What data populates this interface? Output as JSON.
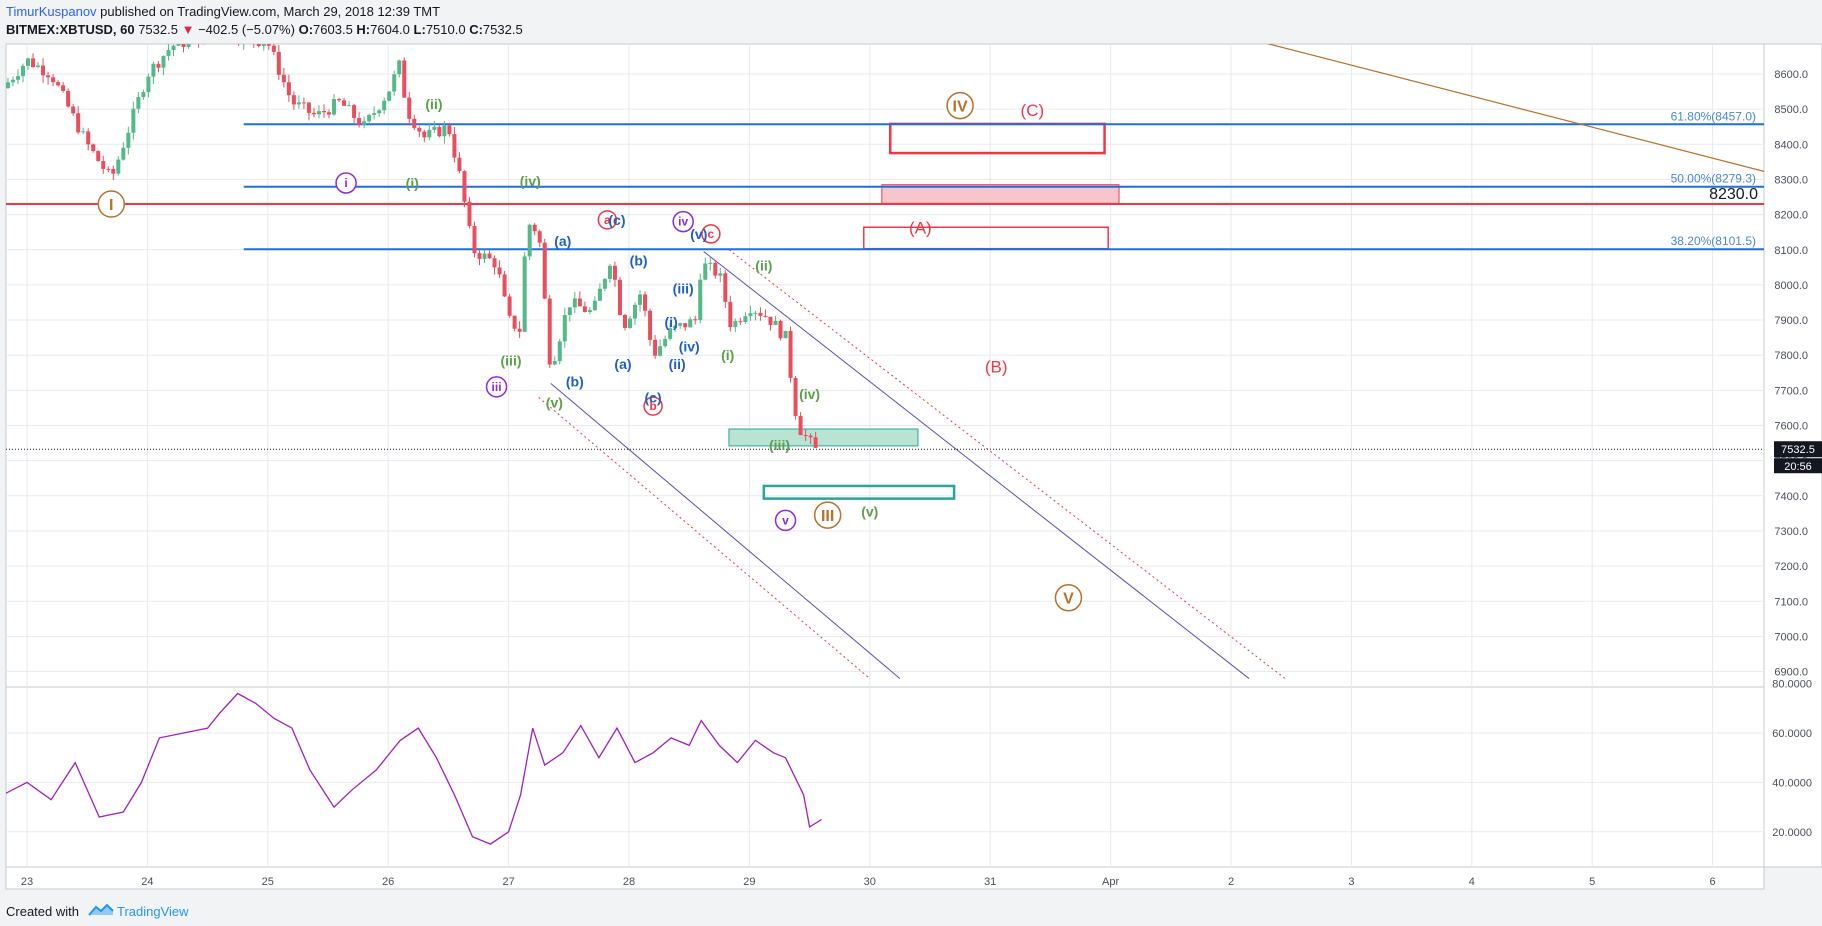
{
  "header": {
    "author": "TimurKuspanov",
    "published_text": " published on TradingView.com, March 29, 2018 12:39 TMT",
    "symbol_label": "BITMEX:XBTUSD, 60",
    "last_price": "7532.5",
    "change_arrow": "▼",
    "change": "−402.5 (−5.07%)",
    "o_label": "O:",
    "o_value": "7603.5",
    "h_label": "H:",
    "h_value": "7604.0",
    "l_label": "L:",
    "l_value": "7510.0",
    "c_label": "C:",
    "c_value": "7532.5"
  },
  "footer": {
    "created_with": "Created with",
    "brand": "TradingView"
  },
  "colors": {
    "up": "#53b987",
    "down": "#eb4d5c",
    "fib": "#1e6fe0",
    "resistance": "#f23645",
    "rsi": "#a020c0",
    "trend": "#b8702a",
    "channel": "#5a4fb5",
    "grid": "#e6eaef"
  },
  "chart_data": {
    "type": "candlestick",
    "symbol": "BITMEX:XBTUSD",
    "timeframe": "60",
    "x_tick_labels": [
      "23",
      "24",
      "25",
      "26",
      "27",
      "28",
      "29",
      "30",
      "31",
      "Apr",
      "2",
      "3",
      "4",
      "5",
      "6"
    ],
    "y_tick_labels": [
      "8600.0",
      "8500.0",
      "8400.0",
      "8300.0",
      "8200.0",
      "8100.0",
      "8000.0",
      "7900.0",
      "7800.0",
      "7700.0",
      "7600.0",
      "7500.0",
      "7400.0",
      "7300.0",
      "7200.0",
      "7100.0",
      "7000.0",
      "6900.0"
    ],
    "ylim": [
      6880,
      8700
    ],
    "price_path": [
      [
        22.8,
        8560
      ],
      [
        23.0,
        8640
      ],
      [
        23.2,
        8600
      ],
      [
        23.5,
        8400
      ],
      [
        23.7,
        8300
      ],
      [
        23.9,
        8500
      ],
      [
        24.0,
        8600
      ],
      [
        24.2,
        8680
      ],
      [
        24.6,
        8720
      ],
      [
        25.0,
        8690
      ],
      [
        25.2,
        8520
      ],
      [
        25.4,
        8480
      ],
      [
        25.6,
        8520
      ],
      [
        25.8,
        8450
      ],
      [
        26.0,
        8550
      ],
      [
        26.1,
        8630
      ],
      [
        26.15,
        8500
      ],
      [
        26.3,
        8420
      ],
      [
        26.5,
        8450
      ],
      [
        26.6,
        8300
      ],
      [
        26.7,
        8100
      ],
      [
        26.9,
        8060
      ],
      [
        27.0,
        7900
      ],
      [
        27.1,
        7870
      ],
      [
        27.15,
        8180
      ],
      [
        27.25,
        8150
      ],
      [
        27.35,
        7760
      ],
      [
        27.5,
        7950
      ],
      [
        27.7,
        7920
      ],
      [
        27.85,
        8080
      ],
      [
        27.95,
        7880
      ],
      [
        28.1,
        7980
      ],
      [
        28.2,
        7800
      ],
      [
        28.35,
        7870
      ],
      [
        28.55,
        7900
      ],
      [
        28.6,
        8060
      ],
      [
        28.75,
        8030
      ],
      [
        28.85,
        7880
      ],
      [
        29.0,
        7940
      ],
      [
        29.15,
        7910
      ],
      [
        29.3,
        7850
      ],
      [
        29.4,
        7600
      ],
      [
        29.55,
        7530
      ]
    ],
    "current_price_label": "7532.5",
    "countdown_label": "20:56",
    "level_label_8230": "8230.0",
    "fib_levels": [
      {
        "label": "61.80%(8457.0)",
        "price": 8457.0
      },
      {
        "label": "50.00%(8279.3)",
        "price": 8279.3
      },
      {
        "label": "38.20%(8101.5)",
        "price": 8101.5
      }
    ],
    "horizontal_level": 8230.0,
    "wave_labels_circled": [
      {
        "text": "I",
        "day": 23.7,
        "price": 8230,
        "color": "#b8702a",
        "size": 13
      },
      {
        "text": "III",
        "day": 29.65,
        "price": 7345,
        "color": "#b8702a",
        "size": 13
      },
      {
        "text": "IV",
        "day": 30.75,
        "price": 8510,
        "color": "#b8702a",
        "size": 13
      },
      {
        "text": "V",
        "day": 31.65,
        "price": 7110,
        "color": "#b8702a",
        "size": 13
      },
      {
        "text": "i",
        "day": 25.65,
        "price": 8290,
        "color": "#8a2be2",
        "size": 10
      },
      {
        "text": "iii",
        "day": 26.9,
        "price": 7710,
        "color": "#8a2be2",
        "size": 10
      },
      {
        "text": "iv",
        "day": 28.45,
        "price": 8180,
        "color": "#8a2be2",
        "size": 10
      },
      {
        "text": "v",
        "day": 29.3,
        "price": 7330,
        "color": "#8a2be2",
        "size": 10
      },
      {
        "text": "a",
        "day": 27.82,
        "price": 8185,
        "color": "#f23645",
        "size": 9
      },
      {
        "text": "b",
        "day": 28.2,
        "price": 7655,
        "color": "#f23645",
        "size": 9
      },
      {
        "text": "c",
        "day": 28.68,
        "price": 8145,
        "color": "#f23645",
        "size": 9
      }
    ],
    "wave_labels_plain": [
      {
        "text": "(ii)",
        "day": 26.38,
        "price": 8515,
        "color": "#5aa04a"
      },
      {
        "text": "(i)",
        "day": 26.2,
        "price": 8290,
        "color": "#5aa04a"
      },
      {
        "text": "(iv)",
        "day": 27.18,
        "price": 8295,
        "color": "#5aa04a"
      },
      {
        "text": "(iii)",
        "day": 27.02,
        "price": 7785,
        "color": "#5aa04a"
      },
      {
        "text": "(v)",
        "day": 27.38,
        "price": 7665,
        "color": "#5aa04a"
      },
      {
        "text": "(ii)",
        "day": 29.12,
        "price": 8055,
        "color": "#5aa04a"
      },
      {
        "text": "(i)",
        "day": 28.82,
        "price": 7800,
        "color": "#5aa04a"
      },
      {
        "text": "(iv)",
        "day": 29.5,
        "price": 7690,
        "color": "#5aa04a"
      },
      {
        "text": "(iii)",
        "day": 29.25,
        "price": 7545,
        "color": "#5aa04a"
      },
      {
        "text": "(v)",
        "day": 30.0,
        "price": 7355,
        "color": "#5aa04a"
      },
      {
        "text": "(a)",
        "day": 27.45,
        "price": 8125,
        "color": "#1e5fc8"
      },
      {
        "text": "(b)",
        "day": 27.55,
        "price": 7725,
        "color": "#1e5fc8"
      },
      {
        "text": "(c)",
        "day": 27.9,
        "price": 8185,
        "color": "#1e5fc8"
      },
      {
        "text": "(b)",
        "day": 28.08,
        "price": 8070,
        "color": "#1e5fc8"
      },
      {
        "text": "(a)",
        "day": 27.95,
        "price": 7775,
        "color": "#1e5fc8"
      },
      {
        "text": "(c)",
        "day": 28.2,
        "price": 7680,
        "color": "#1e5fc8"
      },
      {
        "text": "(i)",
        "day": 28.35,
        "price": 7895,
        "color": "#1e5fc8"
      },
      {
        "text": "(iii)",
        "day": 28.45,
        "price": 7990,
        "color": "#1e5fc8"
      },
      {
        "text": "(iv)",
        "day": 28.5,
        "price": 7825,
        "color": "#1e5fc8"
      },
      {
        "text": "(ii)",
        "day": 28.4,
        "price": 7775,
        "color": "#1e5fc8"
      },
      {
        "text": "(v)",
        "day": 28.58,
        "price": 8145,
        "color": "#1e5fc8"
      },
      {
        "text": "(A)",
        "day": 30.42,
        "price": 8160,
        "color": "#f23645",
        "size": 17
      },
      {
        "text": "(B)",
        "day": 31.05,
        "price": 7765,
        "color": "#f23645",
        "size": 17
      },
      {
        "text": "(C)",
        "day": 31.35,
        "price": 8495,
        "color": "#f23645",
        "size": 17
      }
    ],
    "rsi_axis_labels": [
      "80.0000",
      "60.0000",
      "40.0000",
      "20.0000"
    ],
    "rsi_ylim": [
      15,
      82
    ],
    "rsi_values": [
      [
        22.8,
        35
      ],
      [
        23.0,
        40
      ],
      [
        23.2,
        33
      ],
      [
        23.4,
        48
      ],
      [
        23.6,
        26
      ],
      [
        23.8,
        28
      ],
      [
        23.95,
        40
      ],
      [
        24.1,
        58
      ],
      [
        24.3,
        60
      ],
      [
        24.5,
        62
      ],
      [
        24.6,
        68
      ],
      [
        24.75,
        76
      ],
      [
        24.9,
        72
      ],
      [
        25.05,
        66
      ],
      [
        25.2,
        62
      ],
      [
        25.35,
        45
      ],
      [
        25.55,
        30
      ],
      [
        25.7,
        37
      ],
      [
        25.9,
        45
      ],
      [
        26.1,
        57
      ],
      [
        26.25,
        62
      ],
      [
        26.4,
        50
      ],
      [
        26.55,
        35
      ],
      [
        26.7,
        18
      ],
      [
        26.85,
        15
      ],
      [
        27.0,
        20
      ],
      [
        27.1,
        35
      ],
      [
        27.2,
        62
      ],
      [
        27.3,
        47
      ],
      [
        27.45,
        52
      ],
      [
        27.6,
        63
      ],
      [
        27.75,
        50
      ],
      [
        27.9,
        62
      ],
      [
        28.05,
        48
      ],
      [
        28.2,
        52
      ],
      [
        28.35,
        58
      ],
      [
        28.5,
        55
      ],
      [
        28.6,
        65
      ],
      [
        28.75,
        55
      ],
      [
        28.9,
        48
      ],
      [
        29.05,
        57
      ],
      [
        29.2,
        52
      ],
      [
        29.3,
        50
      ],
      [
        29.45,
        35
      ],
      [
        29.5,
        22
      ],
      [
        29.6,
        25
      ]
    ]
  }
}
